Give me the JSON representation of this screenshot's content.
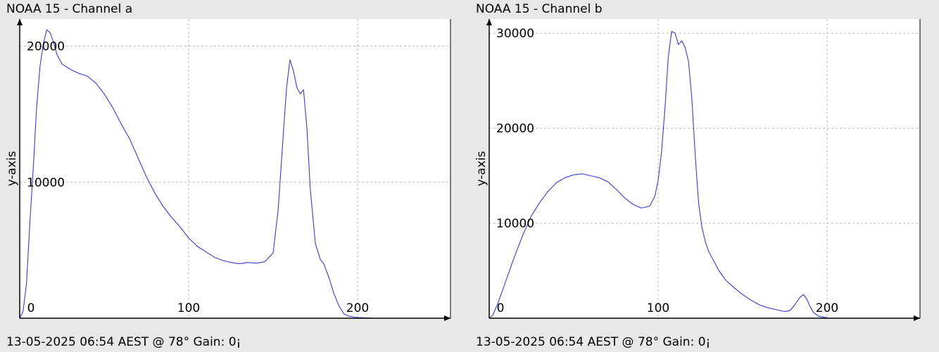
{
  "charts": [
    {
      "title": "NOAA 15 - Channel a",
      "footer": "13-05-2025 06:54 AEST @ 78° Gain: 0¡",
      "chart_data": {
        "type": "line",
        "title": "NOAA 15 - Channel a",
        "xlabel": "",
        "ylabel": "y-axis",
        "xlim": [
          0,
          255
        ],
        "ylim": [
          0,
          22000
        ],
        "xticks": [
          0,
          100,
          200
        ],
        "yticks": [
          10000,
          20000
        ],
        "grid": true,
        "line_color": "#3a3ad0",
        "x": [
          0,
          2,
          4,
          6,
          8,
          10,
          12,
          14,
          16,
          18,
          20,
          22,
          25,
          30,
          35,
          40,
          45,
          50,
          55,
          60,
          65,
          70,
          75,
          80,
          85,
          90,
          95,
          100,
          105,
          110,
          115,
          120,
          125,
          130,
          135,
          140,
          145,
          150,
          153,
          156,
          158,
          160,
          162,
          164,
          166,
          168,
          170,
          172,
          175,
          178,
          180,
          183,
          186,
          189,
          192,
          195,
          198,
          200,
          202,
          205,
          210
        ],
        "y": [
          0,
          500,
          2500,
          7000,
          11000,
          15500,
          18500,
          20200,
          21200,
          21000,
          20300,
          19400,
          18700,
          18300,
          18000,
          17800,
          17300,
          16500,
          15500,
          14300,
          13200,
          11800,
          10400,
          9200,
          8200,
          7400,
          6700,
          5900,
          5300,
          4900,
          4500,
          4250,
          4100,
          4000,
          4100,
          4050,
          4150,
          4800,
          8000,
          13500,
          17000,
          19000,
          18200,
          17000,
          16500,
          16800,
          14000,
          9500,
          5500,
          4300,
          4000,
          3000,
          1800,
          900,
          300,
          150,
          80,
          50,
          40,
          20,
          0
        ]
      }
    },
    {
      "title": "NOAA 15 - Channel b",
      "footer": "13-05-2025 06:54 AEST @ 78° Gain: 0¡",
      "chart_data": {
        "type": "line",
        "title": "NOAA 15 - Channel b",
        "xlabel": "",
        "ylabel": "y-axis",
        "xlim": [
          0,
          255
        ],
        "ylim": [
          0,
          31500
        ],
        "xticks": [
          0,
          100,
          200
        ],
        "yticks": [
          10000,
          20000,
          30000
        ],
        "grid": true,
        "line_color": "#3a3ad0",
        "x": [
          0,
          2,
          5,
          10,
          15,
          20,
          25,
          30,
          35,
          40,
          45,
          50,
          55,
          60,
          65,
          70,
          75,
          80,
          85,
          90,
          95,
          98,
          100,
          102,
          104,
          106,
          108,
          110,
          112,
          114,
          116,
          118,
          120,
          122,
          124,
          126,
          128,
          130,
          133,
          136,
          140,
          145,
          150,
          155,
          160,
          165,
          170,
          175,
          178,
          180,
          182,
          184,
          186,
          188,
          190,
          192,
          195,
          200
        ],
        "y": [
          0,
          300,
          1500,
          4000,
          6500,
          8800,
          10800,
          12200,
          13400,
          14300,
          14800,
          15100,
          15200,
          15000,
          14800,
          14400,
          13600,
          12700,
          12000,
          11600,
          11800,
          12800,
          14500,
          17500,
          22000,
          27500,
          30200,
          30000,
          28800,
          29200,
          28500,
          27000,
          23000,
          17000,
          12000,
          9500,
          8000,
          7000,
          6000,
          5000,
          4000,
          3200,
          2500,
          1900,
          1400,
          1100,
          900,
          700,
          800,
          1200,
          1700,
          2200,
          2500,
          2000,
          1200,
          600,
          200,
          50
        ]
      }
    }
  ]
}
